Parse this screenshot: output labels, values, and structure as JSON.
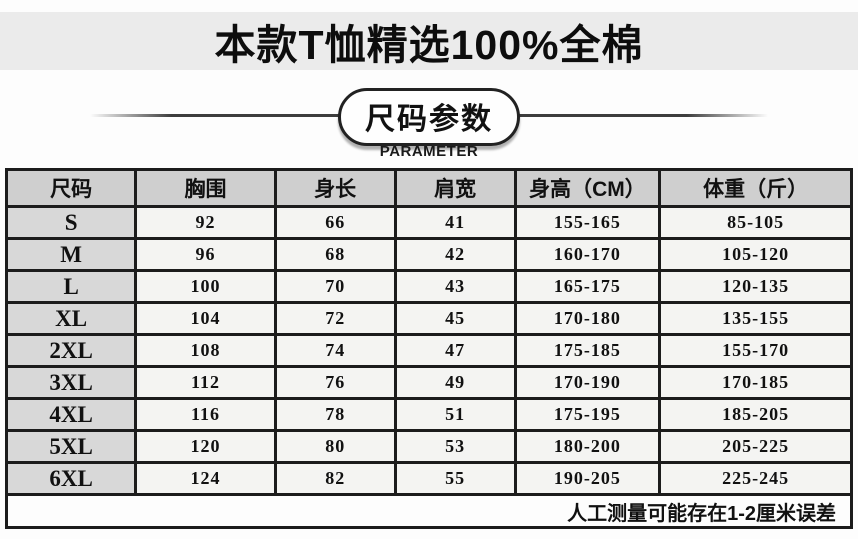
{
  "title": "本款T恤精选100%全棉",
  "parameter_badge": {
    "label": "尺码参数",
    "subtitle": "PARAMETER"
  },
  "table": {
    "columns": [
      "尺码",
      "胸围",
      "身长",
      "肩宽",
      "身高（CM）",
      "体重（斤）"
    ],
    "rows": [
      [
        "S",
        "92",
        "66",
        "41",
        "155-165",
        "85-105"
      ],
      [
        "M",
        "96",
        "68",
        "42",
        "160-170",
        "105-120"
      ],
      [
        "L",
        "100",
        "70",
        "43",
        "165-175",
        "120-135"
      ],
      [
        "XL",
        "104",
        "72",
        "45",
        "170-180",
        "135-155"
      ],
      [
        "2XL",
        "108",
        "74",
        "47",
        "175-185",
        "155-170"
      ],
      [
        "3XL",
        "112",
        "76",
        "49",
        "170-190",
        "170-185"
      ],
      [
        "4XL",
        "116",
        "78",
        "51",
        "175-195",
        "185-205"
      ],
      [
        "5XL",
        "120",
        "80",
        "53",
        "180-200",
        "205-225"
      ],
      [
        "6XL",
        "124",
        "82",
        "55",
        "190-205",
        "225-245"
      ]
    ],
    "note": "人工测量可能存在1-2厘米误差"
  },
  "colors": {
    "title_band_bg": "#ebebeb",
    "header_bg": "#cfcfcf",
    "size_column_bg": "#d8d8d8",
    "cell_bg": "#f4f4f2",
    "border": "#1c1c1c",
    "text": "#111111"
  }
}
